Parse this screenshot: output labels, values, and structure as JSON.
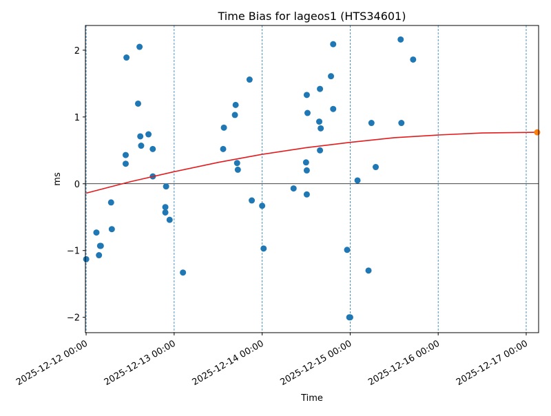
{
  "chart_data": {
    "type": "scatter",
    "title": "Time Bias for lageos1 (HTS34601)",
    "xlabel": "Time",
    "ylabel": "ms",
    "x_unit": "datetime",
    "xlim": [
      "2025-12-11 23:48",
      "2025-12-17 03:23"
    ],
    "ylim": [
      -2.23,
      2.37
    ],
    "grid": "vertical dashed lines at date ticks",
    "zero_line": true,
    "x_ticks": [
      {
        "value": "2025-12-12 00:00",
        "label": "2025-12-12 00:00"
      },
      {
        "value": "2025-12-13 00:00",
        "label": "2025-12-13 00:00"
      },
      {
        "value": "2025-12-14 00:00",
        "label": "2025-12-14 00:00"
      },
      {
        "value": "2025-12-15 00:00",
        "label": "2025-12-15 00:00"
      },
      {
        "value": "2025-12-16 00:00",
        "label": "2025-12-16 00:00"
      },
      {
        "value": "2025-12-17 00:00",
        "label": "2025-12-17 00:00"
      }
    ],
    "y_ticks": [
      {
        "value": -2,
        "label": "−2"
      },
      {
        "value": -1,
        "label": "−1"
      },
      {
        "value": 0,
        "label": "0"
      },
      {
        "value": 1,
        "label": "1"
      },
      {
        "value": 2,
        "label": "2"
      }
    ],
    "colors": {
      "observations": "#1f77b4",
      "fit": "#e31a1c",
      "prediction": "#ff7f0e",
      "grid": "#1f77b4"
    },
    "series": [
      {
        "kind": "points",
        "color": "#1f77b4",
        "points": [
          {
            "x": "2025-12-12 00:01",
            "y": -1.13
          },
          {
            "x": "2025-12-12 02:48",
            "y": -0.73
          },
          {
            "x": "2025-12-12 03:30",
            "y": -1.07
          },
          {
            "x": "2025-12-12 03:48",
            "y": -0.93
          },
          {
            "x": "2025-12-12 04:00",
            "y": -0.93
          },
          {
            "x": "2025-12-12 06:48",
            "y": -0.28
          },
          {
            "x": "2025-12-12 07:00",
            "y": -0.68
          },
          {
            "x": "2025-12-12 10:47",
            "y": 0.3
          },
          {
            "x": "2025-12-12 10:47",
            "y": 0.43
          },
          {
            "x": "2025-12-12 11:00",
            "y": 1.89
          },
          {
            "x": "2025-12-12 14:10",
            "y": 1.2
          },
          {
            "x": "2025-12-12 14:34",
            "y": 2.05
          },
          {
            "x": "2025-12-12 14:46",
            "y": 0.71
          },
          {
            "x": "2025-12-12 15:00",
            "y": 0.57
          },
          {
            "x": "2025-12-12 17:00",
            "y": 0.74
          },
          {
            "x": "2025-12-12 18:10",
            "y": 0.52
          },
          {
            "x": "2025-12-12 18:11",
            "y": 0.11
          },
          {
            "x": "2025-12-12 21:36",
            "y": -0.35
          },
          {
            "x": "2025-12-12 21:36",
            "y": -0.43
          },
          {
            "x": "2025-12-12 21:48",
            "y": -0.04
          },
          {
            "x": "2025-12-12 22:46",
            "y": -0.54
          },
          {
            "x": "2025-12-13 02:24",
            "y": -1.33
          },
          {
            "x": "2025-12-13 13:22",
            "y": 0.52
          },
          {
            "x": "2025-12-13 13:34",
            "y": 0.84
          },
          {
            "x": "2025-12-13 16:34",
            "y": 1.03
          },
          {
            "x": "2025-12-13 16:46",
            "y": 1.18
          },
          {
            "x": "2025-12-13 17:10",
            "y": 0.31
          },
          {
            "x": "2025-12-13 17:22",
            "y": 0.21
          },
          {
            "x": "2025-12-13 20:34",
            "y": 1.56
          },
          {
            "x": "2025-12-13 21:10",
            "y": -0.25
          },
          {
            "x": "2025-12-14 00:00",
            "y": -0.33
          },
          {
            "x": "2025-12-14 00:24",
            "y": -0.97
          },
          {
            "x": "2025-12-14 08:34",
            "y": -0.07
          },
          {
            "x": "2025-12-14 11:58",
            "y": 0.32
          },
          {
            "x": "2025-12-14 12:10",
            "y": 0.2
          },
          {
            "x": "2025-12-14 12:10",
            "y": -0.16
          },
          {
            "x": "2025-12-14 12:10",
            "y": 1.33
          },
          {
            "x": "2025-12-14 12:22",
            "y": 1.06
          },
          {
            "x": "2025-12-14 15:34",
            "y": 0.93
          },
          {
            "x": "2025-12-14 15:46",
            "y": 1.42
          },
          {
            "x": "2025-12-14 15:46",
            "y": 0.5
          },
          {
            "x": "2025-12-14 15:58",
            "y": 0.83
          },
          {
            "x": "2025-12-14 18:46",
            "y": 1.61
          },
          {
            "x": "2025-12-14 19:22",
            "y": 2.09
          },
          {
            "x": "2025-12-14 19:22",
            "y": 1.12
          },
          {
            "x": "2025-12-14 23:10",
            "y": -0.99
          },
          {
            "x": "2025-12-14 23:46",
            "y": -2.0
          },
          {
            "x": "2025-12-15 00:00",
            "y": -2.0
          },
          {
            "x": "2025-12-15 02:00",
            "y": 0.05
          },
          {
            "x": "2025-12-15 05:00",
            "y": -1.3
          },
          {
            "x": "2025-12-15 05:48",
            "y": 0.91
          },
          {
            "x": "2025-12-15 06:58",
            "y": 0.25
          },
          {
            "x": "2025-12-15 13:46",
            "y": 2.16
          },
          {
            "x": "2025-12-15 13:58",
            "y": 0.91
          },
          {
            "x": "2025-12-15 17:10",
            "y": 1.86
          }
        ]
      },
      {
        "kind": "line",
        "color": "#e31a1c",
        "points": [
          {
            "x": "2025-12-12 00:00",
            "y": -0.14
          },
          {
            "x": "2025-12-12 12:00",
            "y": 0.03
          },
          {
            "x": "2025-12-13 00:00",
            "y": 0.18
          },
          {
            "x": "2025-12-13 12:00",
            "y": 0.32
          },
          {
            "x": "2025-12-14 00:00",
            "y": 0.44
          },
          {
            "x": "2025-12-14 12:00",
            "y": 0.54
          },
          {
            "x": "2025-12-15 00:00",
            "y": 0.62
          },
          {
            "x": "2025-12-15 12:00",
            "y": 0.69
          },
          {
            "x": "2025-12-16 00:00",
            "y": 0.73
          },
          {
            "x": "2025-12-16 12:00",
            "y": 0.76
          },
          {
            "x": "2025-12-17 03:00",
            "y": 0.77
          }
        ]
      },
      {
        "kind": "points",
        "color": "#ff7f0e",
        "points": [
          {
            "x": "2025-12-17 03:00",
            "y": 0.77
          }
        ]
      }
    ]
  }
}
